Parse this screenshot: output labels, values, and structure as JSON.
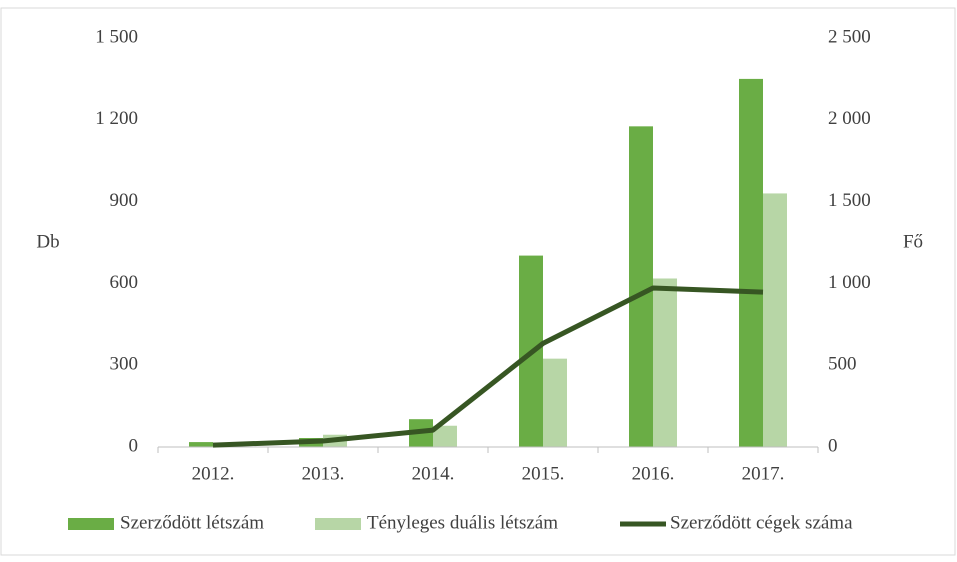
{
  "chart_data": {
    "type": "bar",
    "categories": [
      "2012.",
      "2013.",
      "2014.",
      "2015.",
      "2016.",
      "2017."
    ],
    "series": [
      {
        "name": "Szerződött létszám",
        "type": "bar",
        "axis": "y2",
        "color": "#6aad45",
        "values": [
          30,
          55,
          170,
          1170,
          1960,
          2250
        ]
      },
      {
        "name": "Tényleges duális létszám",
        "type": "bar",
        "axis": "y2",
        "color": "#b7d6a6",
        "values": [
          10,
          75,
          130,
          540,
          1030,
          1550
        ]
      },
      {
        "name": "Szerződött cégek száma",
        "type": "line",
        "axis": "y",
        "color": "#375623",
        "values": [
          7,
          22,
          62,
          380,
          583,
          568
        ]
      }
    ],
    "ylabel": "Db",
    "y2label": "Fő",
    "ylim": [
      0,
      1500
    ],
    "yticks": [
      0,
      300,
      600,
      900,
      {
        "value": 1200,
        "label": "1 200"
      },
      {
        "value": 1500,
        "label": "1 500"
      }
    ],
    "y2lim": [
      0,
      2500
    ],
    "y2ticks": [
      0,
      500,
      {
        "value": 1000,
        "label": "1 000"
      },
      {
        "value": 1500,
        "label": "1 500"
      },
      {
        "value": 2000,
        "label": "2 000"
      },
      {
        "value": 2500,
        "label": "2 500"
      }
    ],
    "legend": "bottom"
  }
}
